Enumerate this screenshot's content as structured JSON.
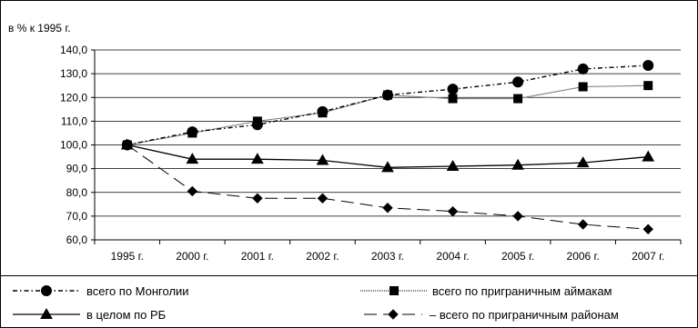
{
  "chart_data": {
    "type": "line",
    "title": "",
    "ylabel": "в % к 1995 г.",
    "xlabel": "",
    "categories": [
      "1995 г.",
      "2000 г.",
      "2001 г.",
      "2002 г.",
      "2003 г.",
      "2004 г.",
      "2005 г.",
      "2006 г.",
      "2007 г."
    ],
    "ylim": [
      60,
      140
    ],
    "yticks": [
      60,
      70,
      80,
      90,
      100,
      110,
      120,
      130,
      140
    ],
    "ytick_labels": [
      "60,0",
      "70,0",
      "80,0",
      "90,0",
      "100,0",
      "110,0",
      "120,0",
      "130,0",
      "140,0"
    ],
    "grid": "horizontal",
    "legend_position": "bottom",
    "series": [
      {
        "name": "всего по Монголии",
        "values": [
          100,
          105.5,
          108.5,
          114,
          121,
          123.5,
          126.5,
          132,
          133.5
        ],
        "line_style": "dash-dot",
        "marker": "circle",
        "color": "#000000"
      },
      {
        "name": "всего по приграничным аймакам",
        "values": [
          100,
          105,
          110,
          113.5,
          121,
          119.5,
          119.5,
          124.5,
          125
        ],
        "line_style": "solid-thin",
        "marker": "square",
        "color": "#808080"
      },
      {
        "name": "в целом по РБ",
        "values": [
          100,
          94,
          94,
          93.5,
          90.5,
          91,
          91.5,
          92.5,
          95
        ],
        "line_style": "solid",
        "marker": "triangle",
        "color": "#000000"
      },
      {
        "name": "– всего по приграничным районам",
        "values": [
          100,
          80.5,
          77.5,
          77.5,
          73.5,
          72,
          70,
          66.5,
          64.5
        ],
        "line_style": "long-dash",
        "marker": "diamond",
        "color": "#000000"
      }
    ]
  }
}
